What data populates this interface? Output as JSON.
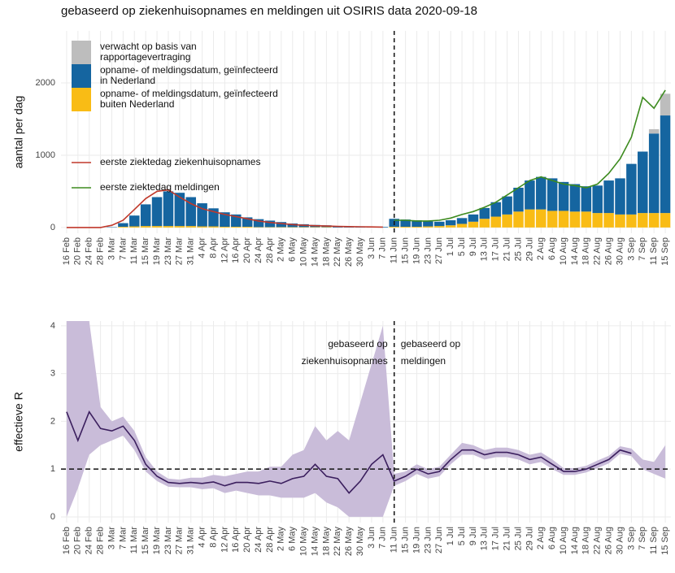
{
  "chart_data": [
    {
      "type": "bar",
      "title": "gebaseerd op ziekenhuisopnames en meldingen uit OSIRIS data 2020-09-18",
      "y_label": "aantal per dag",
      "categories": [
        "16 Feb",
        "20 Feb",
        "24 Feb",
        "28 Feb",
        "3 Mar",
        "7 Mar",
        "11 Mar",
        "15 Mar",
        "19 Mar",
        "23 Mar",
        "27 Mar",
        "31 Mar",
        "4 Apr",
        "8 Apr",
        "12 Apr",
        "16 Apr",
        "20 Apr",
        "24 Apr",
        "28 Apr",
        "2 May",
        "6 May",
        "10 May",
        "14 May",
        "18 May",
        "22 May",
        "26 May",
        "30 May",
        "3 Jun",
        "7 Jun",
        "11 Jun",
        "15 Jun",
        "19 Jun",
        "23 Jun",
        "27 Jun",
        "1 Jul",
        "5 Jul",
        "9 Jul",
        "13 Jul",
        "17 Jul",
        "21 Jul",
        "25 Jul",
        "29 Jul",
        "2 Aug",
        "6 Aug",
        "10 Aug",
        "14 Aug",
        "18 Aug",
        "22 Aug",
        "26 Aug",
        "30 Aug",
        "3 Sep",
        "7 Sep",
        "11 Sep",
        "15 Sep"
      ],
      "series": [
        {
          "name": "verwacht op basis van\nrapportagevertraging",
          "type": "bar",
          "color": "#bdbdbd",
          "values": [
            0,
            0,
            0,
            0,
            0,
            0,
            0,
            0,
            0,
            0,
            0,
            0,
            0,
            0,
            0,
            0,
            0,
            0,
            0,
            0,
            0,
            0,
            0,
            0,
            0,
            0,
            0,
            0,
            0,
            0,
            0,
            0,
            0,
            0,
            0,
            0,
            0,
            0,
            0,
            0,
            0,
            0,
            0,
            0,
            0,
            0,
            0,
            0,
            0,
            0,
            0,
            0,
            60,
            300
          ]
        },
        {
          "name": "opname- of meldingsdatum, geïnfecteerd\nin Nederland",
          "type": "bar",
          "color": "#1565a0",
          "values": [
            0,
            0,
            0,
            0,
            5,
            50,
            150,
            300,
            400,
            480,
            460,
            400,
            320,
            250,
            200,
            170,
            130,
            110,
            90,
            70,
            50,
            40,
            30,
            25,
            20,
            15,
            12,
            10,
            8,
            110,
            100,
            90,
            70,
            60,
            70,
            80,
            100,
            150,
            200,
            250,
            330,
            400,
            450,
            450,
            400,
            380,
            350,
            380,
            450,
            500,
            700,
            850,
            1100,
            1350
          ]
        },
        {
          "name": "opname- of meldingsdatum, geïnfecteerd\nbuiten Nederland",
          "type": "bar",
          "color": "#f9bc15",
          "values": [
            0,
            0,
            0,
            0,
            0,
            10,
            15,
            20,
            20,
            20,
            20,
            20,
            15,
            15,
            10,
            10,
            10,
            5,
            5,
            5,
            5,
            5,
            5,
            5,
            0,
            0,
            0,
            0,
            0,
            10,
            10,
            10,
            15,
            20,
            30,
            50,
            80,
            120,
            150,
            180,
            220,
            250,
            250,
            230,
            230,
            220,
            220,
            200,
            200,
            180,
            180,
            200,
            200,
            200
          ]
        },
        {
          "name": "eerste ziektedag ziekenhuisopnames",
          "type": "line",
          "color": "#c0392b",
          "values": [
            0,
            0,
            0,
            0,
            30,
            100,
            250,
            400,
            500,
            520,
            420,
            330,
            260,
            220,
            180,
            150,
            120,
            90,
            70,
            55,
            40,
            30,
            25,
            20,
            15,
            12,
            10,
            8,
            5,
            null,
            null,
            null,
            null,
            null,
            null,
            null,
            null,
            null,
            null,
            null,
            null,
            null,
            null,
            null,
            null,
            null,
            null,
            null,
            null,
            null,
            null,
            null,
            null,
            null
          ]
        },
        {
          "name": "eerste ziektedag meldingen",
          "type": "line",
          "color": "#3d8b1f",
          "values": [
            null,
            null,
            null,
            null,
            null,
            null,
            null,
            null,
            null,
            null,
            null,
            null,
            null,
            null,
            null,
            null,
            null,
            null,
            null,
            null,
            null,
            null,
            null,
            null,
            null,
            null,
            null,
            null,
            null,
            100,
            100,
            90,
            90,
            100,
            130,
            180,
            220,
            280,
            350,
            450,
            550,
            650,
            700,
            650,
            600,
            580,
            550,
            600,
            750,
            950,
            1250,
            1800,
            1650,
            1900
          ]
        }
      ],
      "ylim": [
        -80,
        2720
      ],
      "yticks": [
        0,
        1000,
        2000
      ],
      "grid": true,
      "divider": "11 Jun"
    },
    {
      "type": "ribbon",
      "y_label": "effectieve R",
      "color": "#3b1f5e",
      "band_color": "#c9bcd9",
      "categories": [
        "16 Feb",
        "20 Feb",
        "24 Feb",
        "28 Feb",
        "3 Mar",
        "7 Mar",
        "11 Mar",
        "15 Mar",
        "19 Mar",
        "23 Mar",
        "27 Mar",
        "31 Mar",
        "4 Apr",
        "8 Apr",
        "12 Apr",
        "16 Apr",
        "20 Apr",
        "24 Apr",
        "28 Apr",
        "2 May",
        "6 May",
        "10 May",
        "14 May",
        "18 May",
        "22 May",
        "26 May",
        "30 May",
        "3 Jun",
        "7 Jun",
        "11 Jun",
        "15 Jun",
        "19 Jun",
        "23 Jun",
        "27 Jun",
        "1 Jul",
        "5 Jul",
        "9 Jul",
        "13 Jul",
        "17 Jul",
        "21 Jul",
        "25 Jul",
        "29 Jul",
        "2 Aug",
        "6 Aug",
        "10 Aug",
        "14 Aug",
        "18 Aug",
        "22 Aug",
        "26 Aug",
        "30 Aug",
        "3 Sep",
        "7 Sep",
        "11 Sep",
        "15 Sep"
      ],
      "values": [
        2.2,
        1.6,
        2.2,
        1.85,
        1.8,
        1.9,
        1.6,
        1.1,
        0.85,
        0.72,
        0.7,
        0.72,
        0.7,
        0.73,
        0.65,
        0.72,
        0.72,
        0.7,
        0.75,
        0.7,
        0.8,
        0.85,
        1.1,
        0.85,
        0.8,
        0.5,
        0.75,
        1.1,
        1.3,
        0.75,
        0.85,
        1.0,
        0.9,
        0.95,
        1.2,
        1.4,
        1.4,
        1.3,
        1.35,
        1.35,
        1.3,
        1.2,
        1.25,
        1.1,
        0.95,
        0.95,
        1.0,
        1.1,
        1.2,
        1.4,
        1.33,
        null,
        null,
        null
      ],
      "lower": [
        0,
        0.6,
        1.3,
        1.5,
        1.6,
        1.7,
        1.4,
        0.95,
        0.75,
        0.63,
        0.62,
        0.62,
        0.58,
        0.6,
        0.5,
        0.55,
        0.5,
        0.45,
        0.45,
        0.4,
        0.4,
        0.4,
        0.5,
        0.3,
        0.2,
        0,
        0,
        0,
        0,
        0.65,
        0.75,
        0.9,
        0.8,
        0.85,
        1.1,
        1.3,
        1.3,
        1.2,
        1.25,
        1.25,
        1.2,
        1.1,
        1.15,
        1.0,
        0.88,
        0.88,
        0.93,
        1.02,
        1.12,
        1.32,
        1.27,
        1.0,
        0.9,
        0.8
      ],
      "upper": [
        4.1,
        4.1,
        4.1,
        2.3,
        2.0,
        2.1,
        1.8,
        1.25,
        0.95,
        0.8,
        0.78,
        0.82,
        0.82,
        0.88,
        0.85,
        0.9,
        0.95,
        0.95,
        1.05,
        1.05,
        1.3,
        1.4,
        1.9,
        1.6,
        1.8,
        1.6,
        2.4,
        3.2,
        4.0,
        0.9,
        0.95,
        1.1,
        1.0,
        1.05,
        1.3,
        1.55,
        1.5,
        1.4,
        1.45,
        1.45,
        1.4,
        1.3,
        1.35,
        1.2,
        1.02,
        1.02,
        1.07,
        1.18,
        1.28,
        1.48,
        1.43,
        1.2,
        1.15,
        1.5
      ],
      "ylim": [
        -0.12,
        4.1
      ],
      "yticks": [
        0,
        1,
        2,
        3,
        4
      ],
      "grid": true,
      "hline": 1,
      "divider": "11 Jun",
      "annotations": [
        {
          "text": "gebaseerd op\nziekenhuisopnames",
          "side": "left"
        },
        {
          "text": "gebaseerd op\nmeldingen",
          "side": "right"
        }
      ]
    }
  ]
}
